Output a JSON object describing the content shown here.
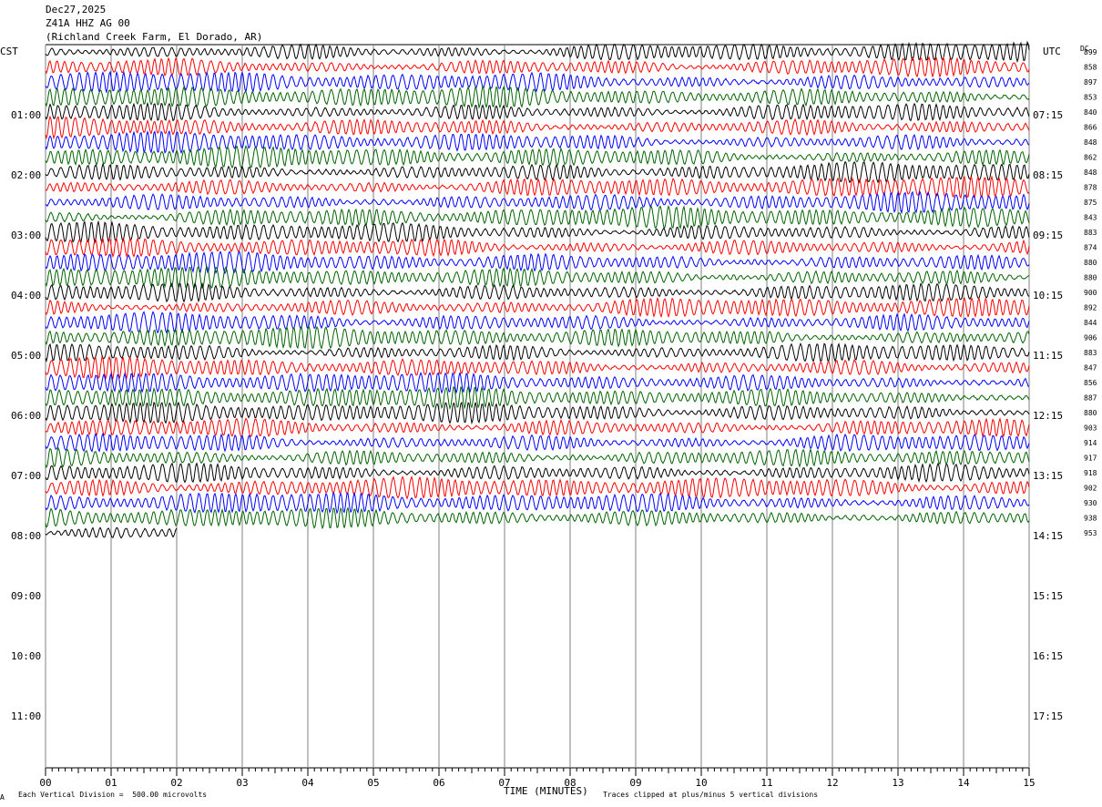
{
  "header": {
    "date": "Dec27,2025",
    "station": "Z41A HHZ AG 00",
    "location": "(Richland Creek Farm, El Dorado, AR)"
  },
  "left_zone_label": "CST",
  "right_zone_label": "UTC",
  "dc_label": "DC",
  "footer": {
    "scale_text": "Each Vertical Division =  500.00 microvolts",
    "xlabel": "TIME (MINUTES)",
    "clip_text": "Traces clipped at plus/minus 5 vertical divisions",
    "corner_mark": "A"
  },
  "colors": {
    "traces": [
      "#000000",
      "#ff0000",
      "#0000ff",
      "#006400"
    ],
    "grid": "#808080"
  },
  "chart_data": {
    "type": "line",
    "title": "Dec27,2025 Z41A HHZ AG 00 (Richland Creek Farm, El Dorado, AR)",
    "xlabel": "TIME (MINUTES)",
    "ylabel": "",
    "xlim": [
      0,
      15
    ],
    "x_ticks": [
      "00",
      "01",
      "02",
      "03",
      "04",
      "05",
      "06",
      "07",
      "08",
      "09",
      "10",
      "11",
      "12",
      "13",
      "14",
      "15"
    ],
    "left_time_labels": [
      "01:00",
      "02:00",
      "03:00",
      "04:00",
      "05:00",
      "06:00",
      "07:00",
      "08:00",
      "09:00",
      "10:00",
      "11:00"
    ],
    "right_time_labels": [
      "07:15",
      "08:15",
      "09:15",
      "10:15",
      "11:15",
      "12:15",
      "13:15",
      "14:15",
      "15:15",
      "16:15",
      "17:15"
    ],
    "lines_per_hour": 4,
    "minutes_per_line": 15,
    "dc_offsets": [
      899,
      858,
      897,
      853,
      840,
      866,
      848,
      862,
      848,
      878,
      875,
      843,
      883,
      874,
      880,
      880,
      900,
      892,
      844,
      906,
      883,
      847,
      856,
      887,
      880,
      903,
      914,
      917,
      918,
      902,
      930,
      938,
      953
    ],
    "last_line_end_minute": 2,
    "grid": true
  }
}
